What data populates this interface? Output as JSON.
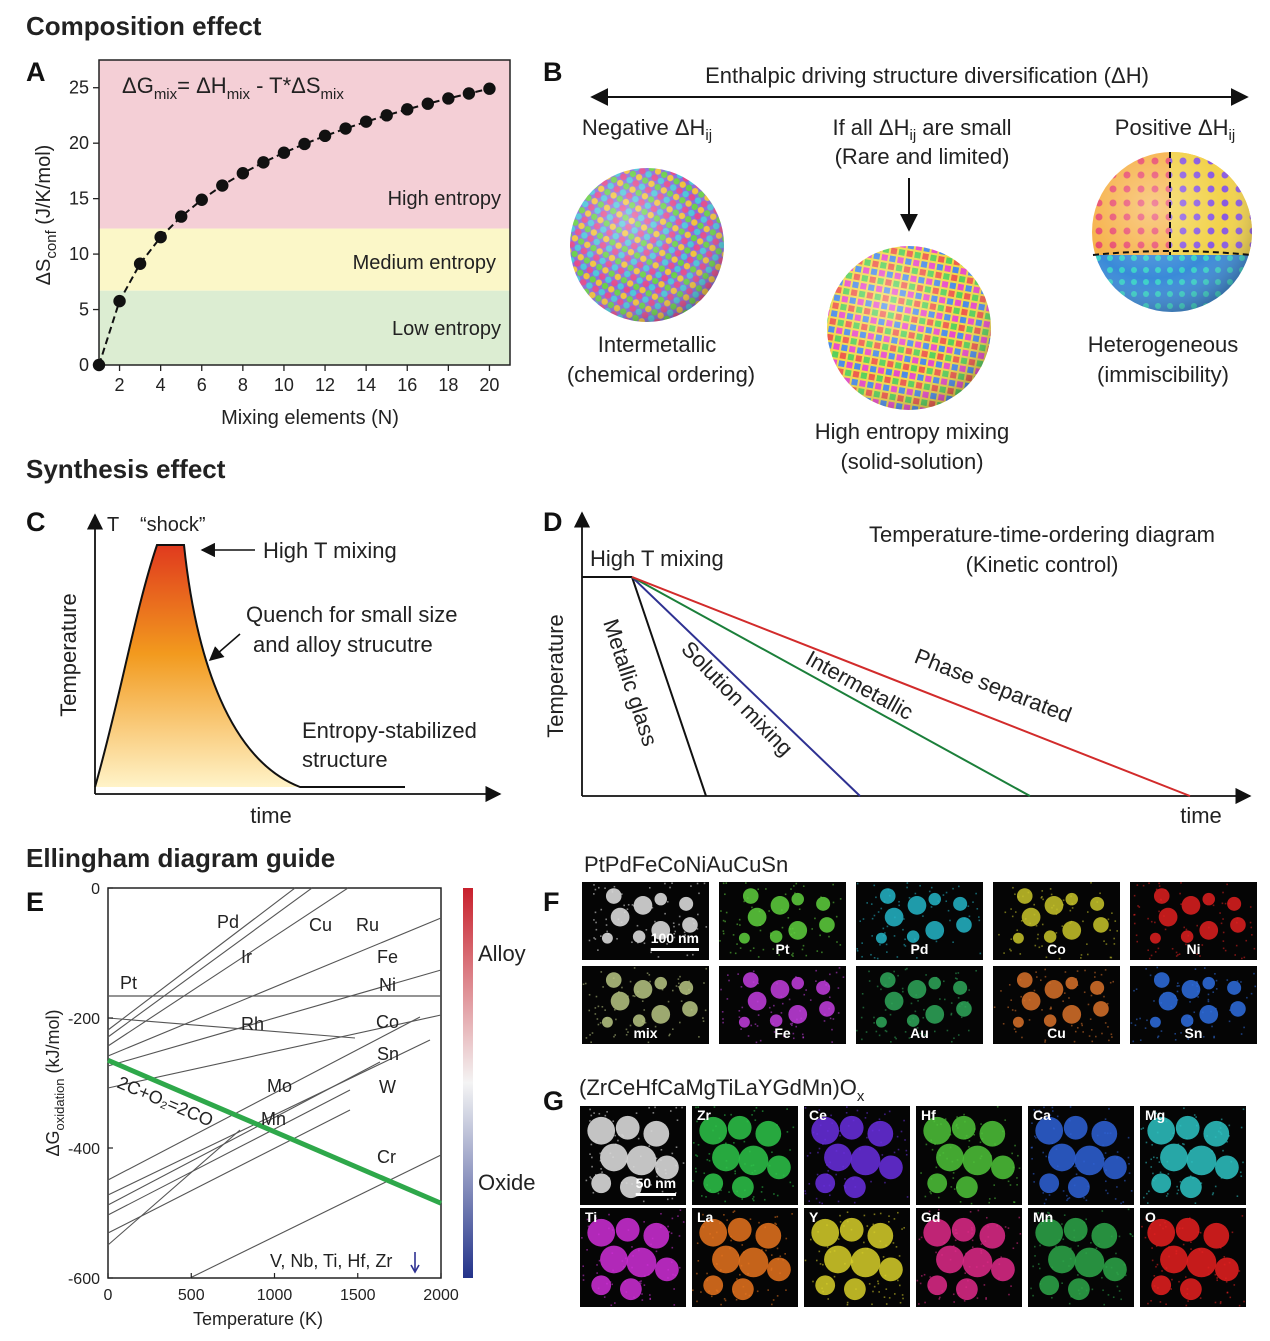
{
  "sections": {
    "composition": "Composition effect",
    "synthesis": "Synthesis effect",
    "ellingham": "Ellingham diagram guide"
  },
  "panel_labels": [
    "A",
    "B",
    "C",
    "D",
    "E",
    "F",
    "G"
  ],
  "panel_a": {
    "equation": {
      "dg": "ΔG",
      "mix1": "mix",
      "eq": "= ΔH",
      "mix2": "mix",
      "mid": " - T*ΔS",
      "mix3": "mix"
    },
    "ylabel_main": "ΔS",
    "ylabel_sub": "conf",
    "ylabel_unit": " (J/K/mol)",
    "xlabel": "Mixing elements (N)",
    "regions": {
      "high": "High entropy",
      "medium": "Medium entropy",
      "low": "Low entropy"
    },
    "region_colors": {
      "high": "#f4cfd6",
      "medium": "#fbf7c8",
      "low": "#dcedd2"
    }
  },
  "panel_b": {
    "arrow_title": "Enthalpic driving structure diversification (ΔH)",
    "negative": {
      "prefix": "Negative ΔH",
      "sub": "ij",
      "line1": "Intermetallic",
      "line2": "(chemical ordering)"
    },
    "small": {
      "prefix": "If all ΔH",
      "sub": "ij",
      "suffix": " are small",
      "note": "(Rare and limited)",
      "line1": "High entropy mixing",
      "line2": "(solid-solution)"
    },
    "positive": {
      "prefix": "Positive ΔH",
      "sub": "ij",
      "line1": "Heterogeneous",
      "line2": "(immiscibility)"
    },
    "note_color": "#d22b2b"
  },
  "panel_c": {
    "t_axis": "T",
    "shock": "“shock”",
    "high_t": "High T mixing",
    "quench1": "Quench for small size",
    "quench2": "and alloy strucutre",
    "entropy1": "Entropy-stabilized",
    "entropy2": "structure",
    "ylabel": "Temperature",
    "xlabel": "time",
    "shock_color": "#c0272d"
  },
  "panel_d": {
    "title1": "Temperature-time-ordering diagram",
    "title2": "(Kinetic control)",
    "title_color": "#2e3192",
    "high_t": "High T mixing",
    "ylabel": "Temperature",
    "xlabel": "time",
    "lines": [
      {
        "label": "Metallic glass",
        "color": "#111111"
      },
      {
        "label": "Solution mixing",
        "color": "#2e3192"
      },
      {
        "label": "Intermetallic",
        "color": "#1b7f3a"
      },
      {
        "label": "Phase separated",
        "color": "#d22b2b"
      }
    ]
  },
  "panel_e": {
    "ylabel_main": "ΔG",
    "ylabel_sub": "oxidation",
    "ylabel_unit": " (kJ/mol)",
    "xlabel": "Temperature (K)",
    "xticks": [
      "0",
      "500",
      "1000",
      "1500",
      "2000"
    ],
    "yticks": [
      "0",
      "-200",
      "-400",
      "-600"
    ],
    "xlim": [
      0,
      2000
    ],
    "ylim": [
      -600,
      0
    ],
    "alloy": "Alloy",
    "oxide": "Oxide",
    "co_reaction": "2C+O₂=2CO",
    "co_line": {
      "x": [
        0,
        2000
      ],
      "y": [
        -265,
        -485
      ],
      "color": "#2ea84a"
    },
    "elements_alloy": [
      "Pd",
      "Cu",
      "Ru",
      "Ir",
      "Fe",
      "Pt",
      "Ni",
      "Rh",
      "Co"
    ],
    "elements_oxide": [
      "Sn",
      "Mo",
      "W",
      "Mn",
      "Cr"
    ],
    "bottom_note": "V, Nb, Ti, Hf, Zr",
    "alloy_color": "#d22b2b",
    "oxide_color": "#1b7f3a",
    "note_color": "#2e3192"
  },
  "panel_f": {
    "title": "PtPdFeCoNiAuCuSn",
    "scale": "100 nm",
    "maps": [
      {
        "label": "",
        "color": "#e8e8e8"
      },
      {
        "label": "Pt",
        "color": "#5fd13e"
      },
      {
        "label": "Pd",
        "color": "#25b6c8"
      },
      {
        "label": "Co",
        "color": "#c9c52a"
      },
      {
        "label": "Ni",
        "color": "#e02020"
      },
      {
        "label": "mix",
        "color": "#b9c784"
      },
      {
        "label": "Fe",
        "color": "#c43ee0"
      },
      {
        "label": "Au",
        "color": "#2fa85a"
      },
      {
        "label": "Cu",
        "color": "#d9722a"
      },
      {
        "label": "Sn",
        "color": "#2f6fe0"
      }
    ]
  },
  "panel_g": {
    "title_main": "(ZrCeHfCaMgTiLaYGdMn)O",
    "title_sub": "x",
    "scale": "50 nm",
    "maps": [
      {
        "label": "",
        "color": "#e8e8e8"
      },
      {
        "label": "Zr",
        "color": "#2ec64a"
      },
      {
        "label": "Ce",
        "color": "#6a2fe0"
      },
      {
        "label": "Hf",
        "color": "#4fc43a"
      },
      {
        "label": "Ca",
        "color": "#2f63d8"
      },
      {
        "label": "Mg",
        "color": "#2ec4c4"
      },
      {
        "label": "Ti",
        "color": "#d02fd8"
      },
      {
        "label": "La",
        "color": "#e8741e"
      },
      {
        "label": "Y",
        "color": "#d8d02a"
      },
      {
        "label": "Gd",
        "color": "#e02a8a"
      },
      {
        "label": "Mn",
        "color": "#2ea84a"
      },
      {
        "label": "O",
        "color": "#e82020"
      }
    ]
  },
  "chart_data": [
    {
      "type": "line",
      "title": "ΔGmix = ΔHmix - T*ΔSmix",
      "xlabel": "Mixing elements (N)",
      "ylabel": "ΔSconf (J/K/mol)",
      "x": [
        1,
        2,
        3,
        4,
        5,
        6,
        7,
        8,
        9,
        10,
        11,
        12,
        13,
        14,
        15,
        16,
        17,
        18,
        19,
        20
      ],
      "y": [
        0,
        5.76,
        9.13,
        11.53,
        13.38,
        14.9,
        16.18,
        17.29,
        18.27,
        19.14,
        19.93,
        20.66,
        21.32,
        21.94,
        22.51,
        23.05,
        23.56,
        24.03,
        24.48,
        24.91
      ],
      "xlim": [
        1,
        21
      ],
      "ylim": [
        0,
        27.5
      ],
      "xticks": [
        "2",
        "4",
        "6",
        "8",
        "10",
        "12",
        "14",
        "16",
        "18",
        "20"
      ],
      "yticks": [
        "0",
        "5",
        "10",
        "15",
        "20",
        "25"
      ],
      "bands": [
        {
          "label": "Low entropy",
          "range": [
            0,
            6.7
          ]
        },
        {
          "label": "Medium entropy",
          "range": [
            6.7,
            12.3
          ]
        },
        {
          "label": "High entropy",
          "range": [
            12.3,
            27.5
          ]
        }
      ]
    },
    {
      "type": "line",
      "title": "Ellingham diagram guide",
      "xlabel": "Temperature (K)",
      "ylabel": "ΔGoxidation (kJ/mol)",
      "xlim": [
        0,
        2000
      ],
      "ylim": [
        -600,
        0
      ],
      "series": [
        {
          "name": "2C+O2=2CO",
          "x": [
            0,
            2000
          ],
          "y": [
            -265,
            -485
          ]
        },
        {
          "name": "Pt",
          "x": [
            0,
            2000
          ],
          "y": [
            -166,
            -166
          ]
        }
      ]
    }
  ]
}
